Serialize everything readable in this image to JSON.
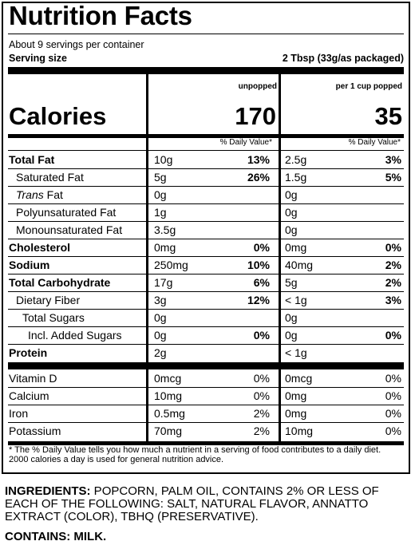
{
  "label": {
    "title": "Nutrition Facts",
    "servings_per_container": "About 9 servings per container",
    "serving_size_label": "Serving size",
    "serving_size_value": "2 Tbsp (33g/as packaged)",
    "column1_header": "unpopped",
    "column2_header": "per 1 cup popped",
    "calories_label": "Calories",
    "calories_col1": "170",
    "calories_col2": "35",
    "daily_value_header": "% Daily Value*",
    "nutrients": [
      {
        "label": "Total Fat",
        "amt1": "10g",
        "pct1": "13%",
        "amt2": "2.5g",
        "pct2": "3%"
      },
      {
        "label": "Saturated Fat",
        "amt1": "5g",
        "pct1": "26%",
        "amt2": "1.5g",
        "pct2": "5%"
      },
      {
        "label_italic": "Trans",
        "label": " Fat",
        "amt1": "0g",
        "pct1": "",
        "amt2": "0g",
        "pct2": ""
      },
      {
        "label": "Polyunsaturated Fat",
        "amt1": "1g",
        "pct1": "",
        "amt2": "0g",
        "pct2": ""
      },
      {
        "label": "Monounsaturated Fat",
        "amt1": "3.5g",
        "pct1": "",
        "amt2": "0g",
        "pct2": ""
      },
      {
        "label": "Cholesterol",
        "amt1": "0mg",
        "pct1": "0%",
        "amt2": "0mg",
        "pct2": "0%"
      },
      {
        "label": "Sodium",
        "amt1": "250mg",
        "pct1": "10%",
        "amt2": "40mg",
        "pct2": "2%"
      },
      {
        "label": "Total Carbohydrate",
        "amt1": "17g",
        "pct1": "6%",
        "amt2": "5g",
        "pct2": "2%"
      },
      {
        "label": "Dietary Fiber",
        "amt1": "3g",
        "pct1": "12%",
        "amt2": "< 1g",
        "pct2": "3%"
      },
      {
        "label": "Total Sugars",
        "amt1": "0g",
        "pct1": "",
        "amt2": "0g",
        "pct2": ""
      },
      {
        "label": "Incl. Added Sugars",
        "amt1": "0g",
        "pct1": "0%",
        "amt2": "0g",
        "pct2": "0%"
      },
      {
        "label": "Protein",
        "amt1": "2g",
        "pct1": "",
        "amt2": "< 1g",
        "pct2": ""
      }
    ],
    "vitamins": [
      {
        "label": "Vitamin D",
        "amt1": "0mcg",
        "pct1": "0%",
        "amt2": "0mcg",
        "pct2": "0%"
      },
      {
        "label": "Calcium",
        "amt1": "10mg",
        "pct1": "0%",
        "amt2": "0mg",
        "pct2": "0%"
      },
      {
        "label": "Iron",
        "amt1": "0.5mg",
        "pct1": "2%",
        "amt2": "0mg",
        "pct2": "0%"
      },
      {
        "label": "Potassium",
        "amt1": "70mg",
        "pct1": "2%",
        "amt2": "10mg",
        "pct2": "0%"
      }
    ],
    "footnote": "* The % Daily Value tells you how much a nutrient in a serving of food contributes to a daily diet. 2000 calories a day is used for general nutrition advice."
  },
  "ingredients": {
    "heading": "INGREDIENTS:",
    "text": " POPCORN, PALM OIL, CONTAINS 2% OR LESS OF EACH OF THE FOLLOWING: SALT, NATURAL FLAVOR, ANNATTO EXTRACT (COLOR), TBHQ (PRESERVATIVE)."
  },
  "contains": "CONTAINS: MILK."
}
